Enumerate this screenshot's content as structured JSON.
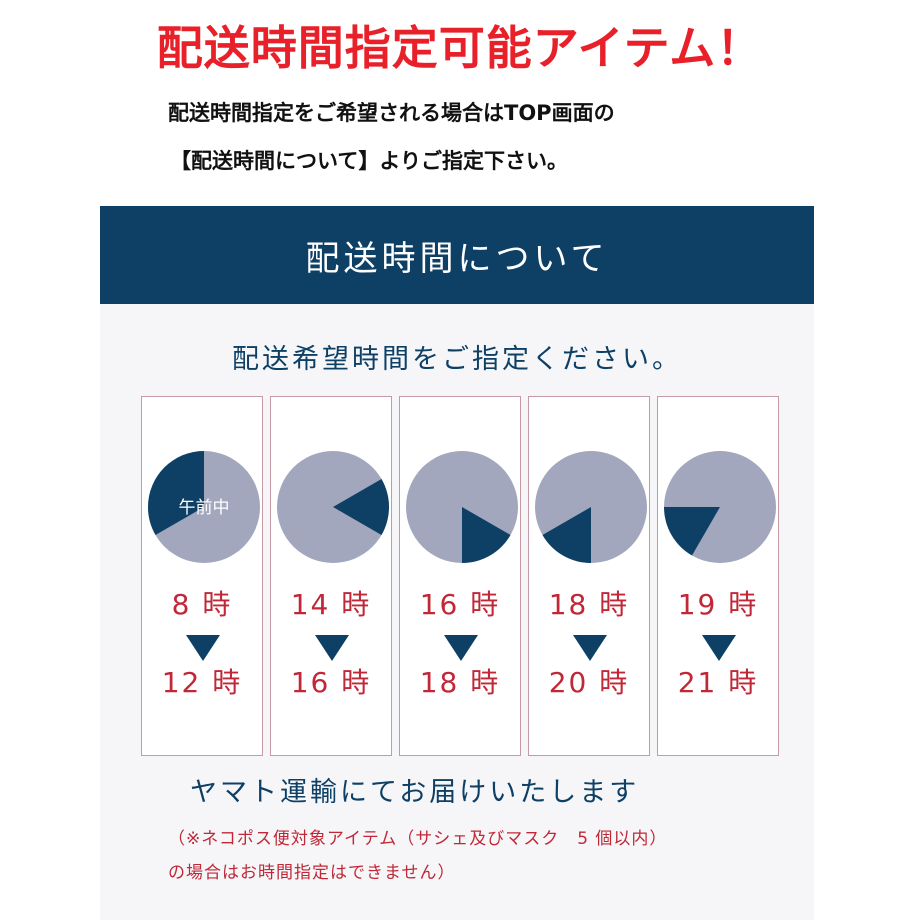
{
  "headline": "配送時間指定可能アイテム！",
  "subtitle_line1": "配送時間指定をご希望される場合はTOP画面の",
  "subtitle_line2": "【配送時間について】よりご指定下さい。",
  "banner": "配送時間について",
  "panel_title": "配送希望時間をご指定ください。",
  "colors": {
    "accent_red": "#e8202a",
    "navy": "#0e4066",
    "clock_gray": "#a3a7bd",
    "time_red": "#c02838"
  },
  "slots": [
    {
      "from": "8 時",
      "to": "12 時",
      "clock_label": "午前中"
    },
    {
      "from": "14 時",
      "to": "16 時",
      "clock_label": ""
    },
    {
      "from": "16 時",
      "to": "18 時",
      "clock_label": ""
    },
    {
      "from": "18 時",
      "to": "20 時",
      "clock_label": ""
    },
    {
      "from": "19 時",
      "to": "21 時",
      "clock_label": ""
    }
  ],
  "yamato": "ヤマト運輸にてお届けいたします",
  "note_line1": "（※ネコポス便対象アイテム（サシェ及びマスク　5 個以内）",
  "note_line2": "の場合はお時間指定はできません）"
}
